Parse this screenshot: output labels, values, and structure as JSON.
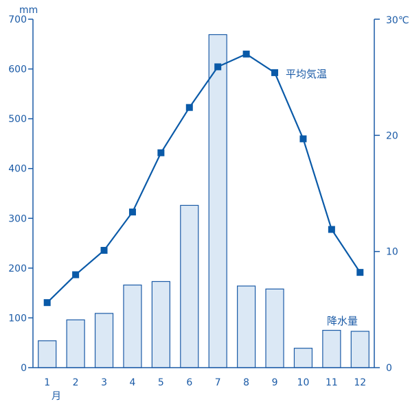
{
  "chart_data": {
    "type": "bar+line",
    "categories": [
      "1",
      "2",
      "3",
      "4",
      "5",
      "6",
      "7",
      "8",
      "9",
      "10",
      "11",
      "12"
    ],
    "x_sublabel": "月",
    "left_axis": {
      "unit": "mm",
      "range": [
        0,
        700
      ],
      "ticks": [
        "0",
        "100",
        "200",
        "300",
        "400",
        "500",
        "600",
        "700"
      ]
    },
    "right_axis": {
      "unit": "30℃",
      "range": [
        0,
        30
      ],
      "ticks": [
        "0",
        "10",
        "20"
      ]
    },
    "series": [
      {
        "name": "降水量",
        "type": "bar",
        "axis": "left",
        "values": [
          54,
          96,
          109,
          166,
          173,
          326,
          669,
          164,
          158,
          39,
          75,
          73
        ]
      },
      {
        "name": "平均気温",
        "type": "line",
        "axis": "right",
        "values": [
          5.6,
          8.0,
          10.1,
          13.4,
          18.5,
          22.4,
          25.9,
          27.0,
          25.4,
          19.7,
          11.9,
          8.2
        ]
      }
    ],
    "colors": {
      "line": "#0a5aa8",
      "bar_fill": "#dbe8f5",
      "bar_stroke": "#1a5aa6",
      "text": "#1a5aa6"
    },
    "grid": false
  }
}
